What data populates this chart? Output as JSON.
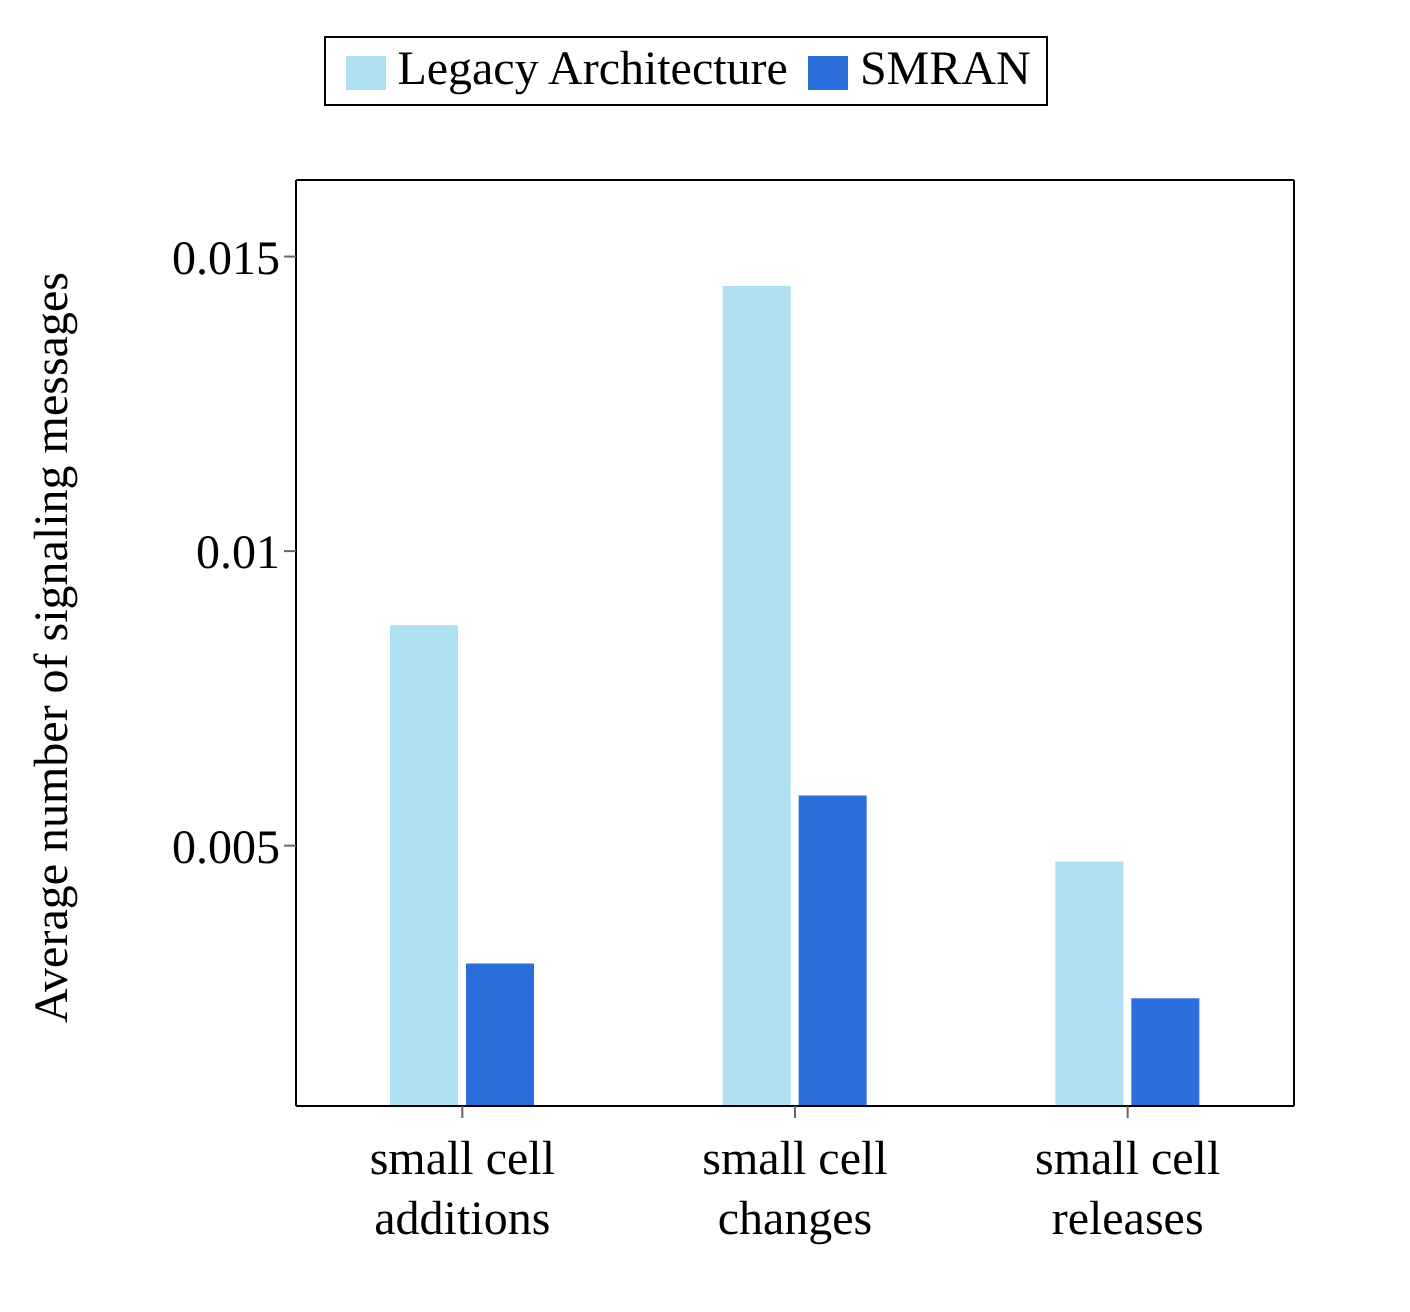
{
  "chart_data": {
    "type": "bar",
    "ylabel": "Average number of signaling messages",
    "categories": [
      "small cell additions",
      "small cell changes",
      "small cell releases"
    ],
    "series": [
      {
        "name": "Legacy Architecture",
        "color": "#aee0f2",
        "values": [
          0.00874,
          0.0145,
          0.00473
        ]
      },
      {
        "name": "SMRAN",
        "color": "#2a6fdb",
        "values": [
          0.003,
          0.00585,
          0.00241
        ]
      }
    ],
    "ylim": [
      0.00058,
      0.0163
    ],
    "yticks": [
      0.005,
      0.01,
      0.015
    ],
    "legend": "top"
  }
}
